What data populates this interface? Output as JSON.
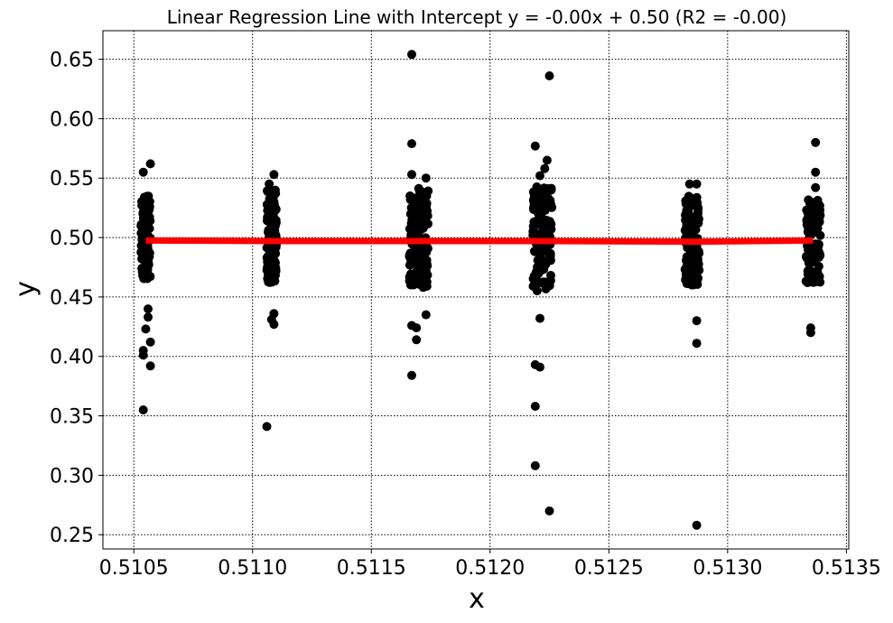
{
  "chart_data": {
    "type": "scatter",
    "title": "Linear Regression Line with Intercept y = -0.00x + 0.50 (R2 = -0.00)",
    "xlabel": "x",
    "ylabel": "y",
    "xlim": [
      0.51037,
      0.51351
    ],
    "ylim": [
      0.238,
      0.674
    ],
    "grid": true,
    "x_ticks": [
      0.5105,
      0.511,
      0.5115,
      0.512,
      0.5125,
      0.513,
      0.5135
    ],
    "x_tick_labels": [
      "0.5105",
      "0.5110",
      "0.5115",
      "0.5120",
      "0.5125",
      "0.5130",
      "0.5135"
    ],
    "y_ticks": [
      0.25,
      0.3,
      0.35,
      0.4,
      0.45,
      0.5,
      0.55,
      0.6,
      0.65
    ],
    "y_tick_labels": [
      "0.25",
      "0.30",
      "0.35",
      "0.40",
      "0.45",
      "0.50",
      "0.55",
      "0.60",
      "0.65"
    ],
    "colors": {
      "points": "#000000",
      "regression_line": "#ff0000"
    },
    "clusters": [
      {
        "x_center": 0.51055,
        "x_spread": 2e-05,
        "dense_range": [
          0.465,
          0.535
        ],
        "outliers": [
          [
            0.51054,
            0.555
          ],
          [
            0.51057,
            0.562
          ],
          [
            0.51056,
            0.44
          ],
          [
            0.51056,
            0.433
          ],
          [
            0.51055,
            0.423
          ],
          [
            0.51057,
            0.412
          ],
          [
            0.51054,
            0.405
          ],
          [
            0.51054,
            0.401
          ],
          [
            0.51057,
            0.392
          ],
          [
            0.51054,
            0.355
          ]
        ]
      },
      {
        "x_center": 0.51108,
        "x_spread": 2e-05,
        "dense_range": [
          0.462,
          0.54
        ],
        "outliers": [
          [
            0.51109,
            0.553
          ],
          [
            0.51107,
            0.545
          ],
          [
            0.51109,
            0.436
          ],
          [
            0.51108,
            0.431
          ],
          [
            0.51109,
            0.427
          ],
          [
            0.51106,
            0.341
          ]
        ]
      },
      {
        "x_center": 0.5117,
        "x_spread": 4e-05,
        "dense_range": [
          0.458,
          0.542
        ],
        "outliers": [
          [
            0.51167,
            0.654
          ],
          [
            0.51167,
            0.579
          ],
          [
            0.51167,
            0.553
          ],
          [
            0.51173,
            0.55
          ],
          [
            0.51167,
            0.426
          ],
          [
            0.51169,
            0.424
          ],
          [
            0.51169,
            0.414
          ],
          [
            0.51173,
            0.435
          ],
          [
            0.51167,
            0.384
          ]
        ]
      },
      {
        "x_center": 0.51222,
        "x_spread": 4e-05,
        "dense_range": [
          0.455,
          0.545
        ],
        "outliers": [
          [
            0.51225,
            0.636
          ],
          [
            0.51219,
            0.577
          ],
          [
            0.51224,
            0.565
          ],
          [
            0.51223,
            0.558
          ],
          [
            0.51221,
            0.552
          ],
          [
            0.51221,
            0.432
          ],
          [
            0.51219,
            0.393
          ],
          [
            0.51221,
            0.391
          ],
          [
            0.51219,
            0.358
          ],
          [
            0.51219,
            0.308
          ],
          [
            0.51225,
            0.27
          ]
        ]
      },
      {
        "x_center": 0.51285,
        "x_spread": 3e-05,
        "dense_range": [
          0.46,
          0.535
        ],
        "outliers": [
          [
            0.51284,
            0.545
          ],
          [
            0.51287,
            0.545
          ],
          [
            0.51287,
            0.43
          ],
          [
            0.51287,
            0.411
          ],
          [
            0.51287,
            0.258
          ]
        ]
      },
      {
        "x_center": 0.51336,
        "x_spread": 3e-05,
        "dense_range": [
          0.462,
          0.532
        ],
        "outliers": [
          [
            0.51337,
            0.58
          ],
          [
            0.51337,
            0.555
          ],
          [
            0.51337,
            0.542
          ],
          [
            0.51335,
            0.424
          ],
          [
            0.51335,
            0.42
          ]
        ]
      }
    ],
    "regression_line": {
      "x": [
        0.51055,
        0.51108,
        0.5117,
        0.51222,
        0.51285,
        0.51336
      ],
      "y": [
        0.4975,
        0.497,
        0.497,
        0.497,
        0.4965,
        0.4975
      ]
    }
  }
}
